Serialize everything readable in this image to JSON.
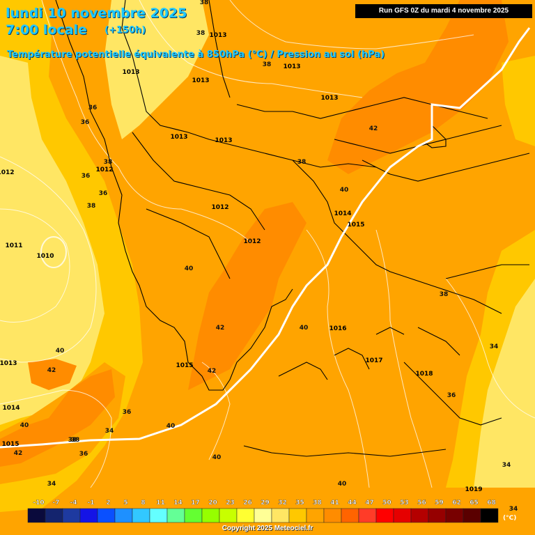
{
  "header": {
    "date_line": "lundi 10 novembre 2025",
    "time_line": "7:00 locale",
    "lead_time": "(+150h)",
    "subtitle": "Température potentielle équivalente à 850hPa (°C) / Pression au sol (hPa)"
  },
  "run_info": "Run GFS 0Z du mardi 4 novembre 2025",
  "copyright": "Copyright 2025 Meteociel.fr",
  "colorbar": {
    "unit": "(°C)",
    "ticks": [
      "-10",
      "-7",
      "-4",
      "-1",
      "2",
      "5",
      "8",
      "11",
      "14",
      "17",
      "20",
      "23",
      "26",
      "29",
      "32",
      "35",
      "38",
      "41",
      "44",
      "47",
      "50",
      "53",
      "56",
      "59",
      "62",
      "65",
      "68"
    ],
    "colors": [
      "#0a0a3c",
      "#14246e",
      "#1e3aa0",
      "#1414e6",
      "#0a50ff",
      "#1e90ff",
      "#32c8ff",
      "#64ffff",
      "#64ff96",
      "#64ff32",
      "#96ff00",
      "#c8ff00",
      "#ffff32",
      "#ffff96",
      "#ffe664",
      "#ffc800",
      "#ffa400",
      "#ff8c00",
      "#ff6400",
      "#ff3c28",
      "#ff0000",
      "#e60000",
      "#b40000",
      "#960000",
      "#780000",
      "#5a0000",
      "#000000"
    ]
  },
  "isobar_labels": [
    {
      "text": "1013"
    },
    {
      "text": "1013"
    },
    {
      "text": "1013"
    },
    {
      "text": "1013"
    },
    {
      "text": "1013"
    },
    {
      "text": "1013"
    },
    {
      "text": "1013"
    },
    {
      "text": "1012"
    },
    {
      "text": "1012"
    },
    {
      "text": "1012"
    },
    {
      "text": "1012"
    },
    {
      "text": "1011"
    },
    {
      "text": "1010"
    },
    {
      "text": "1014"
    },
    {
      "text": "1015"
    },
    {
      "text": "1016"
    },
    {
      "text": "1017"
    },
    {
      "text": "1018"
    },
    {
      "text": "1015"
    },
    {
      "text": "1013"
    },
    {
      "text": "1014"
    },
    {
      "text": "1015"
    },
    {
      "text": "1019"
    }
  ],
  "theta_labels": [
    {
      "text": "38"
    },
    {
      "text": "38"
    },
    {
      "text": "38"
    },
    {
      "text": "36"
    },
    {
      "text": "36"
    },
    {
      "text": "38"
    },
    {
      "text": "36"
    },
    {
      "text": "36"
    },
    {
      "text": "38"
    },
    {
      "text": "42"
    },
    {
      "text": "38"
    },
    {
      "text": "40"
    },
    {
      "text": "40"
    },
    {
      "text": "42"
    },
    {
      "text": "40"
    },
    {
      "text": "42"
    },
    {
      "text": "40"
    },
    {
      "text": "42"
    },
    {
      "text": "40"
    },
    {
      "text": "36"
    },
    {
      "text": "34"
    },
    {
      "text": "38"
    },
    {
      "text": "34"
    },
    {
      "text": "40"
    },
    {
      "text": "40"
    },
    {
      "text": "38"
    },
    {
      "text": "36"
    },
    {
      "text": "34"
    },
    {
      "text": "34"
    },
    {
      "text": "34"
    },
    {
      "text": "40"
    },
    {
      "text": "42"
    },
    {
      "text": "36"
    },
    {
      "text": "38"
    }
  ]
}
